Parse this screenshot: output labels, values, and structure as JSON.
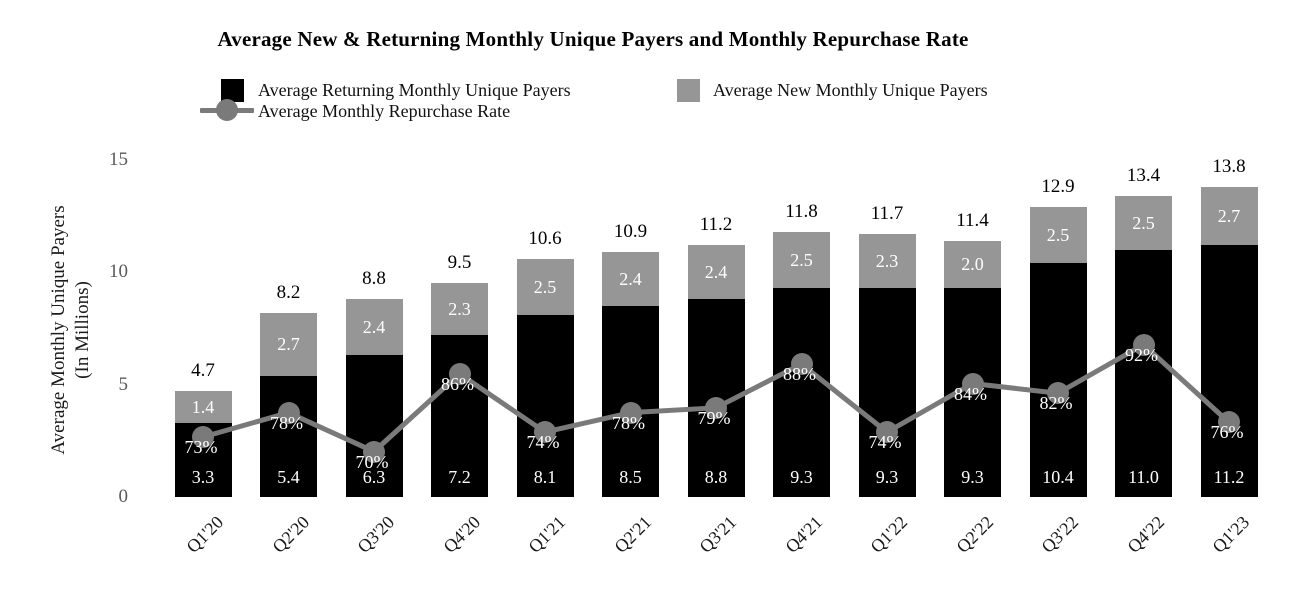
{
  "chart_data": {
    "type": "bar",
    "subtype": "stacked-bars-with-line-overlay",
    "title": "Average New & Returning Monthly Unique Payers and Monthly Repurchase Rate",
    "categories": [
      "Q1'20",
      "Q2'20",
      "Q3'20",
      "Q4'20",
      "Q1'21",
      "Q2'21",
      "Q3'21",
      "Q4'21",
      "Q1'22",
      "Q2'22",
      "Q3'22",
      "Q4'22",
      "Q1'23"
    ],
    "series": [
      {
        "name": "Average Returning Monthly Unique Payers",
        "role": "stack-bottom-bar",
        "color": "#000000",
        "values": [
          3.3,
          5.4,
          6.3,
          7.2,
          8.1,
          8.5,
          8.8,
          9.3,
          9.3,
          9.3,
          10.4,
          11.0,
          11.2
        ]
      },
      {
        "name": "Average New Monthly Unique Payers",
        "role": "stack-top-bar",
        "color": "#969696",
        "values": [
          1.4,
          2.7,
          2.4,
          2.3,
          2.5,
          2.4,
          2.4,
          2.5,
          2.3,
          2.0,
          2.5,
          2.5,
          2.7
        ]
      },
      {
        "name": "Average Monthly Repurchase Rate",
        "role": "line",
        "color": "#7a7a7a",
        "values_pct": [
          73,
          78,
          70,
          86,
          74,
          78,
          79,
          88,
          74,
          84,
          82,
          92,
          76
        ]
      }
    ],
    "totals": [
      4.7,
      8.2,
      8.8,
      9.5,
      10.6,
      10.9,
      11.2,
      11.8,
      11.7,
      11.4,
      12.9,
      13.4,
      13.8
    ],
    "ylabel_line1": "Average Monthly Unique Payers",
    "ylabel_line2": "(In Millions)",
    "yticks": [
      0,
      5,
      10,
      15
    ],
    "ylim": [
      0,
      15
    ],
    "grid": false,
    "legend_position": "top-center",
    "colors": {
      "bar_value_text": "#ffffff",
      "rate_value_text": "#ffffff",
      "total_text": "#000000",
      "axis_tick_text": "#595959",
      "category_text": "#1a1a1a",
      "title_text": "#000000"
    },
    "rate_line_axis_hint": {
      "slope_millions_per_pct": 0.216,
      "intercept_millions": -13.1
    }
  }
}
